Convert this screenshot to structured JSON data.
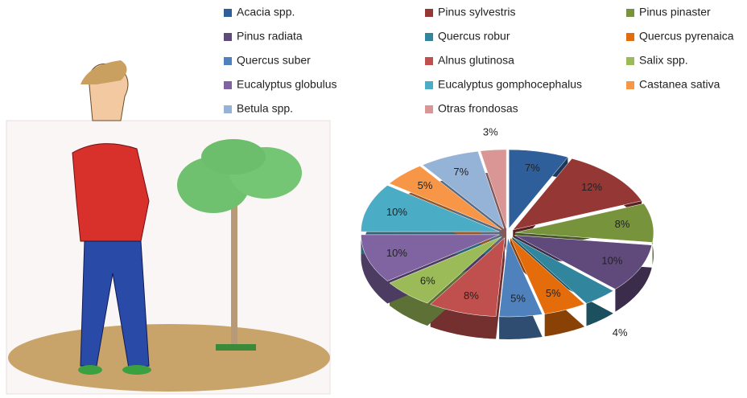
{
  "chart_data": {
    "type": "pie",
    "categories": [
      "Acacia spp.",
      "Pinus sylvestris",
      "Pinus pinaster",
      "Pinus radiata",
      "Quercus robur",
      "Quercus pyrenaica",
      "Quercus suber",
      "Alnus glutinosa",
      "Salix spp.",
      "Eucalyptus globulus",
      "Eucalyptus gomphocephalus",
      "Castanea sativa",
      "Betula spp.",
      "Otras frondosas"
    ],
    "values": [
      7,
      12,
      8,
      10,
      4,
      5,
      5,
      8,
      6,
      10,
      10,
      5,
      7,
      3
    ],
    "value_labels": [
      "7%",
      "12%",
      "8%",
      "10%",
      "4%",
      "5%",
      "5%",
      "8%",
      "6%",
      "10%",
      "10%",
      "5%",
      "7%",
      "3%"
    ],
    "colors": [
      "#2e5f9a",
      "#953735",
      "#77933c",
      "#604a7b",
      "#31859c",
      "#e46c0a",
      "#4f81bd",
      "#c0504d",
      "#9bbb59",
      "#8064a2",
      "#4bacc6",
      "#f79646",
      "#95b3d7",
      "#d99694"
    ],
    "legend": "top"
  }
}
